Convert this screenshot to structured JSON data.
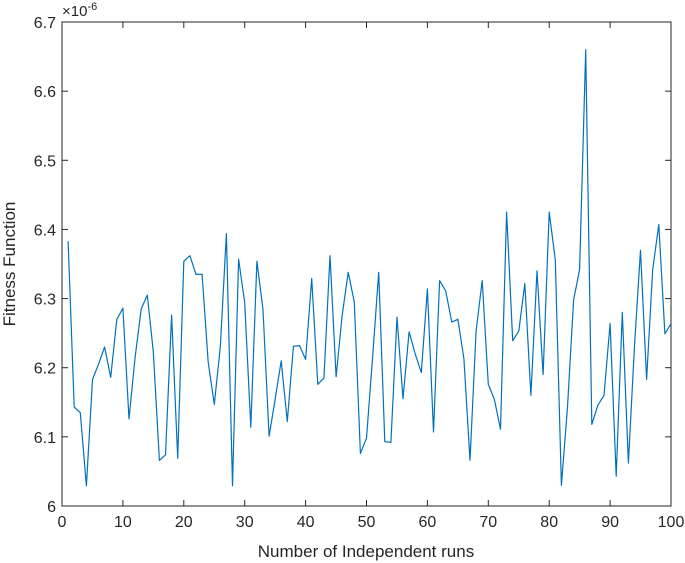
{
  "chart_data": {
    "type": "line",
    "title": "",
    "xlabel": "Number of Independent runs",
    "ylabel": "Fitness Function",
    "y_scale_factor": "×10",
    "y_scale_exponent": "-6",
    "xlim": [
      0,
      100
    ],
    "ylim": [
      6.0,
      6.7
    ],
    "xticks": [
      0,
      10,
      20,
      30,
      40,
      50,
      60,
      70,
      80,
      90,
      100
    ],
    "yticks": [
      6,
      6.1,
      6.2,
      6.3,
      6.4,
      6.5,
      6.6,
      6.7
    ],
    "xtick_labels": [
      "0",
      "10",
      "20",
      "30",
      "40",
      "50",
      "60",
      "70",
      "80",
      "90",
      "100"
    ],
    "ytick_labels": [
      "6",
      "6.1",
      "6.2",
      "6.3",
      "6.4",
      "6.5",
      "6.6",
      "6.7"
    ],
    "grid": false,
    "series_color": "#0072BD",
    "series": [
      {
        "x": [
          1,
          2,
          3,
          4,
          5,
          6,
          7,
          8,
          9,
          10,
          11,
          12,
          13,
          14,
          15,
          16,
          17,
          18,
          19,
          20,
          21,
          22,
          23,
          24,
          25,
          26,
          27,
          28,
          29,
          30,
          31,
          32,
          33,
          34,
          35,
          36,
          37,
          38,
          39,
          40,
          41,
          42,
          43,
          44,
          45,
          46,
          47,
          48,
          49,
          50,
          51,
          52,
          53,
          54,
          55,
          56,
          57,
          58,
          59,
          60,
          61,
          62,
          63,
          64,
          65,
          66,
          67,
          68,
          69,
          70,
          71,
          72,
          73,
          74,
          75,
          76,
          77,
          78,
          79,
          80,
          81,
          82,
          83,
          84,
          85,
          86,
          87,
          88,
          89,
          90,
          91,
          92,
          93,
          94,
          95,
          96,
          97,
          98,
          99,
          100
        ],
        "values": [
          6.383,
          6.143,
          6.135,
          6.029,
          6.183,
          6.205,
          6.23,
          6.186,
          6.27,
          6.286,
          6.126,
          6.215,
          6.285,
          6.305,
          6.223,
          6.066,
          6.074,
          6.276,
          6.069,
          6.354,
          6.362,
          6.335,
          6.335,
          6.208,
          6.147,
          6.23,
          6.394,
          6.029,
          6.357,
          6.294,
          6.114,
          6.354,
          6.284,
          6.101,
          6.154,
          6.21,
          6.122,
          6.231,
          6.232,
          6.212,
          6.329,
          6.176,
          6.185,
          6.362,
          6.187,
          6.275,
          6.338,
          6.295,
          6.076,
          6.098,
          6.215,
          6.338,
          6.093,
          6.092,
          6.273,
          6.155,
          6.252,
          6.22,
          6.193,
          6.314,
          6.107,
          6.326,
          6.311,
          6.266,
          6.27,
          6.213,
          6.066,
          6.253,
          6.326,
          6.176,
          6.154,
          6.111,
          6.425,
          6.239,
          6.253,
          6.322,
          6.16,
          6.34,
          6.19,
          6.425,
          6.356,
          6.03,
          6.143,
          6.298,
          6.342,
          6.66,
          6.118,
          6.146,
          6.16,
          6.264,
          6.043,
          6.28,
          6.062,
          6.232,
          6.37,
          6.183,
          6.342,
          6.407,
          6.249,
          6.264
        ]
      }
    ]
  }
}
